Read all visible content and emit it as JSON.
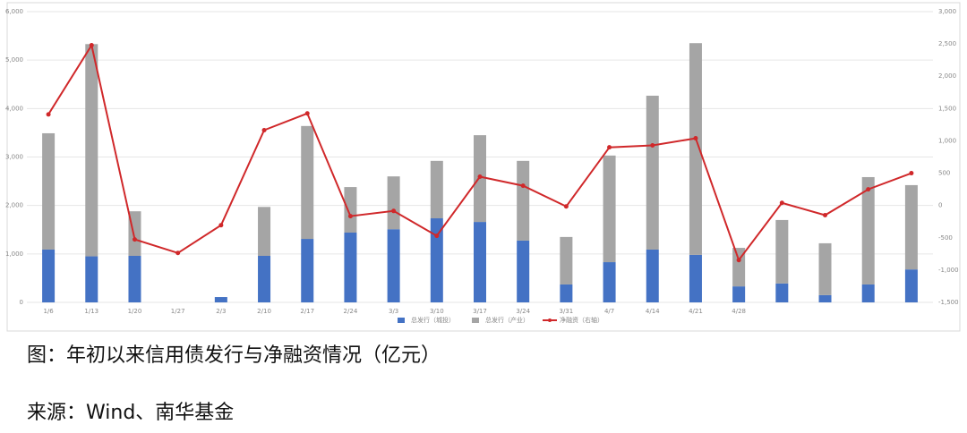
{
  "chart_data": {
    "type": "stacked_bar_line",
    "categories": [
      "1/6",
      "1/13",
      "1/20",
      "1/27",
      "2/3",
      "2/10",
      "2/17",
      "2/24",
      "3/3",
      "3/10",
      "3/17",
      "3/24",
      "3/31",
      "4/7",
      "4/14",
      "4/21",
      "4/28",
      null,
      null,
      null,
      null
    ],
    "series": [
      {
        "name": "总发行（城投）",
        "color": "#4472c4",
        "kind": "bar",
        "values": [
          1090,
          950,
          960,
          0,
          110,
          960,
          1310,
          1440,
          1510,
          1735,
          1660,
          1275,
          370,
          830,
          1090,
          980,
          330,
          390,
          150,
          370,
          680
        ]
      },
      {
        "name": "总发行（产业）",
        "color": "#a5a5a5",
        "kind": "bar",
        "values": [
          2400,
          4380,
          920,
          0,
          0,
          1010,
          2330,
          940,
          1090,
          1185,
          1790,
          1645,
          980,
          2200,
          3175,
          4370,
          795,
          1310,
          1070,
          2215,
          1740
        ]
      },
      {
        "name": "净融资（右轴）",
        "color": "#d0282a",
        "kind": "line",
        "axis": "y2",
        "values": [
          1410,
          2480,
          -525,
          -735,
          -305,
          1165,
          1425,
          -165,
          -85,
          -470,
          445,
          305,
          -15,
          900,
          930,
          1040,
          -845,
          40,
          -150,
          250,
          500
        ]
      }
    ],
    "ylim": [
      0,
      6000
    ],
    "yticks": [
      0,
      {
        "value": 1000,
        "label": "1,000"
      },
      {
        "value": 2000,
        "label": "2,000"
      },
      {
        "value": 3000,
        "label": "3,000"
      },
      {
        "value": 4000,
        "label": "4,000"
      },
      {
        "value": 5000,
        "label": "5,000"
      },
      {
        "value": 6000,
        "label": "6,000"
      }
    ],
    "y2lim": [
      -1500,
      3000
    ],
    "y2ticks": [
      {
        "value": -1500,
        "label": "-1,500"
      },
      {
        "value": -1000,
        "label": "-1,000"
      },
      -500,
      0,
      500,
      {
        "value": 1000,
        "label": "1,000"
      },
      {
        "value": 1500,
        "label": "1,500"
      },
      {
        "value": 2000,
        "label": "2,000"
      },
      {
        "value": 2500,
        "label": "2,500"
      },
      {
        "value": 3000,
        "label": "3,000"
      }
    ],
    "grid": true,
    "legend": "bottom"
  },
  "caption": "图：年初以来信用债发行与净融资情况（亿元）",
  "source": "来源：Wind、南华基金"
}
